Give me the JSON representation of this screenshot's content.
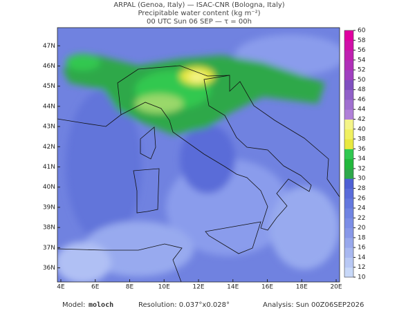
{
  "header": {
    "line1": "ARPAL (Genoa, Italy)  —  ISAC-CNR (Bologna, Italy)",
    "line2": "Precipitable water content (kg m⁻²)",
    "line3": "00 UTC Sun 06 SEP  —  τ = 00h"
  },
  "map": {
    "xlim": [
      3.8,
      20.2
    ],
    "ylim": [
      35.3,
      47.9
    ],
    "xticks": [
      {
        "value": 4,
        "label": "4E"
      },
      {
        "value": 6,
        "label": "6E"
      },
      {
        "value": 8,
        "label": "8E"
      },
      {
        "value": 10,
        "label": "10E"
      },
      {
        "value": 12,
        "label": "12E"
      },
      {
        "value": 14,
        "label": "14E"
      },
      {
        "value": 16,
        "label": "16E"
      },
      {
        "value": 18,
        "label": "18E"
      },
      {
        "value": 20,
        "label": "20E"
      }
    ],
    "yticks": [
      {
        "value": 36,
        "label": "36N"
      },
      {
        "value": 37,
        "label": "37N"
      },
      {
        "value": 38,
        "label": "38N"
      },
      {
        "value": 39,
        "label": "39N"
      },
      {
        "value": 40,
        "label": "40N"
      },
      {
        "value": 41,
        "label": "41N"
      },
      {
        "value": 42,
        "label": "42N"
      },
      {
        "value": 43,
        "label": "43N"
      },
      {
        "value": 44,
        "label": "44N"
      },
      {
        "value": 45,
        "label": "45N"
      },
      {
        "value": 46,
        "label": "46N"
      },
      {
        "value": 47,
        "label": "47N"
      }
    ]
  },
  "colorbar": {
    "levels": [
      10,
      12,
      14,
      16,
      18,
      20,
      22,
      24,
      26,
      28,
      30,
      32,
      34,
      36,
      38,
      40,
      42,
      44,
      46,
      48,
      50,
      52,
      54,
      56,
      58,
      60
    ],
    "colors": [
      "#c8d8f8",
      "#b8c8f4",
      "#a8b8f0",
      "#98a8ec",
      "#8898e8",
      "#7c8ee6",
      "#7084e2",
      "#6478de",
      "#5a6cda",
      "#4e60d4",
      "#2ea84a",
      "#22b83c",
      "#30c850",
      "#e8e840",
      "#f0f060",
      "#f4f488",
      "#b080d8",
      "#a070d0",
      "#9060c8",
      "#8050c0",
      "#a040c0",
      "#b030b8",
      "#c020b0",
      "#d010a8",
      "#e000a0"
    ]
  },
  "footer": {
    "model_label": "Model:",
    "model": "moloch",
    "resolution": "Resolution: 0.037°x0.028°",
    "analysis": "Analysis: Sun 00Z06SEP2026"
  }
}
